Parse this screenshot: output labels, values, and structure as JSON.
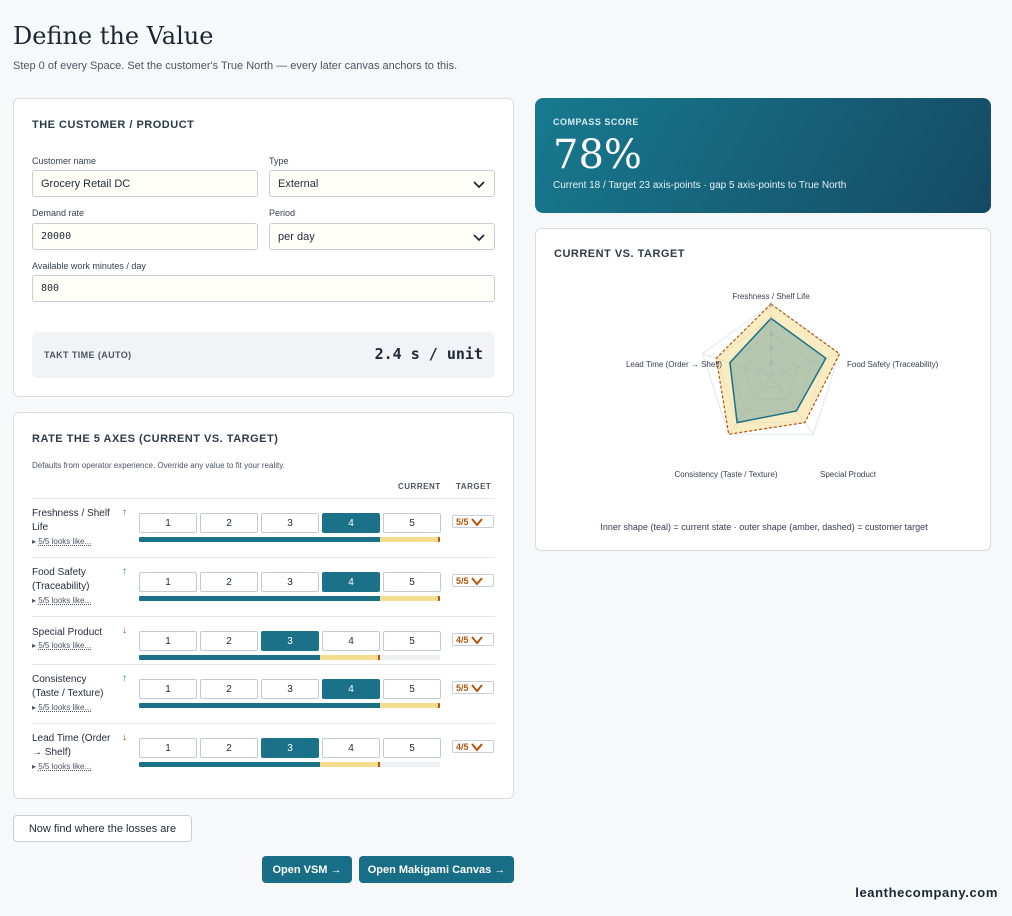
{
  "page": {
    "title": "Define the Value",
    "subtitle": "Step 0 of every Space. Set the customer's True North — every later canvas anchors to this."
  },
  "customer": {
    "section_title": "THE CUSTOMER / PRODUCT",
    "customer_name_label": "Customer name",
    "customer_name_value": "Grocery Retail DC",
    "type_label": "Type",
    "type_value": "External",
    "demand_rate_label": "Demand rate",
    "demand_rate_value": "20000",
    "period_label": "Period",
    "period_value": "per day",
    "work_minutes_label": "Available work minutes / day",
    "work_minutes_value": "800",
    "takt_label": "TAKT TIME (AUTO)",
    "takt_value": "2.4 s / unit"
  },
  "axes_section": {
    "title": "RATE THE 5 AXES (CURRENT VS. TARGET)",
    "hint": "Defaults from operator experience. Override any value to fit your reality.",
    "current_header": "CURRENT",
    "target_header": "TARGET",
    "rating_labels": [
      "1",
      "2",
      "3",
      "4",
      "5"
    ],
    "axes": [
      {
        "name_line1": "Freshness / Shelf",
        "name_line2": "Life",
        "arrow": "↑",
        "looks": "5/5 looks like...",
        "current": 4,
        "target": 5,
        "target_label": "5/5"
      },
      {
        "name_line1": "Food Safety",
        "name_line2": "(Traceability)",
        "arrow": "↑",
        "looks": "5/5 looks like...",
        "current": 4,
        "target": 5,
        "target_label": "5/5"
      },
      {
        "name_line1": "Special Product",
        "name_line2": "",
        "arrow": "↓",
        "looks": "5/5 looks like...",
        "current": 3,
        "target": 4,
        "target_label": "4/5"
      },
      {
        "name_line1": "Consistency",
        "name_line2": "(Taste / Texture)",
        "arrow": "↑",
        "looks": "5/5 looks like...",
        "current": 4,
        "target": 5,
        "target_label": "5/5"
      },
      {
        "name_line1": "Lead Time (Order",
        "name_line2": "→ Shelf)",
        "arrow": "↓",
        "looks": "5/5 looks like...",
        "current": 3,
        "target": 4,
        "target_label": "4/5"
      }
    ]
  },
  "actions": {
    "losses_button": "Now find where the losses are",
    "vsm_button": "Open VSM →",
    "makigami_button": "Open Makigami Canvas →"
  },
  "score": {
    "label": "COMPASS SCORE",
    "value": "78%",
    "summary": "Current 18 / Target 23 axis-points · gap 5 axis-points to True North"
  },
  "radar": {
    "title": "CURRENT VS. TARGET",
    "axis_labels": [
      "Freshness / Shelf Life",
      "Food Safety (Traceability)",
      "Special Product",
      "Consistency (Taste / Texture)",
      "Lead Time (Order → Shelf)"
    ],
    "ring_labels": [
      "1",
      "2",
      "3",
      "4",
      "5"
    ],
    "current": [
      4,
      4,
      3,
      4,
      3
    ],
    "target": [
      5,
      5,
      4,
      5,
      4
    ],
    "max": 5,
    "caption": "Inner shape (teal) = current state · outer shape (amber, dashed) = customer target",
    "colors": {
      "current": "#1b7188",
      "target": "#f6dc8f",
      "target_line": "#b45309"
    }
  },
  "footer": "leanthecompany.com"
}
